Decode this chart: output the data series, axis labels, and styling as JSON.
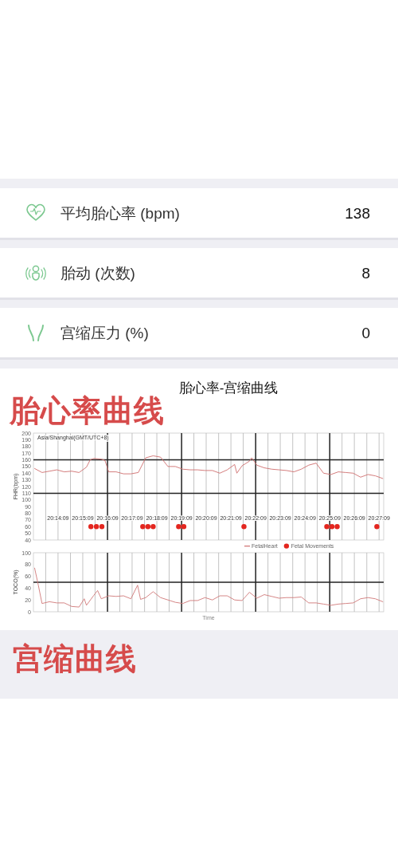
{
  "chart_data": [
    {
      "type": "other",
      "categories": [
        "平均胎心率 (bpm)",
        "胎动 (次数)",
        "宫缩压力 (%)"
      ],
      "values": [
        138,
        8,
        0
      ],
      "data_labels": true
    },
    {
      "type": "line",
      "title": "胎心率-宫缩曲线",
      "ylabel": "FHR(bpm)",
      "annotations": [
        "胎心率曲线",
        "Asia/Shanghai(GMT/UTC+8)"
      ],
      "series": [
        {
          "name": "FetalHeart",
          "type": "line",
          "color": "#cf6e6e",
          "x": [
            20.22,
            20.225,
            20.23,
            20.235,
            20.24,
            20.245,
            20.25,
            20.255,
            20.2575,
            20.26,
            20.265,
            20.2675,
            20.27,
            20.275,
            20.28,
            20.285,
            20.29,
            20.295,
            20.3,
            20.305,
            20.31,
            20.315,
            20.32,
            20.325,
            20.33,
            20.335,
            20.34,
            20.345,
            20.35,
            20.355,
            20.3565,
            20.36,
            20.365,
            20.3665,
            20.37,
            20.375,
            20.38,
            20.385,
            20.39,
            20.395,
            20.4,
            20.405,
            20.41,
            20.415,
            20.42,
            20.425,
            20.43,
            20.435,
            20.44,
            20.445,
            20.45,
            20.455
          ],
          "values": [
            147,
            141,
            143,
            145,
            142,
            143,
            141,
            149,
            160,
            162,
            161,
            159,
            142,
            142,
            139,
            139,
            141,
            163,
            166,
            164,
            150,
            150,
            146,
            145,
            145,
            144,
            144,
            140,
            145,
            153,
            140,
            151,
            158,
            163,
            152,
            148,
            146,
            145,
            144,
            142,
            146,
            152,
            155,
            140,
            138,
            142,
            141,
            140,
            134,
            138,
            136,
            132
          ]
        },
        {
          "name": "Fetal Movements",
          "type": "scatter",
          "marker": "circle",
          "color": "#e3261f",
          "x": [
            20.258,
            20.2617,
            20.2654,
            20.293,
            20.2965,
            20.3,
            20.3172,
            20.3207,
            20.3613,
            20.4172,
            20.4207,
            20.4242,
            20.451
          ],
          "values": [
            60,
            60,
            60,
            60,
            60,
            60,
            60,
            60,
            60,
            60,
            60,
            60,
            60
          ]
        }
      ],
      "xlim": [
        20.2192,
        20.4556
      ],
      "xticks": [
        {
          "value": 20.2275,
          "label": null
        },
        {
          "value": 20.2358,
          "label": "20:14:09"
        },
        {
          "value": 20.2442,
          "label": null
        },
        {
          "value": 20.2525,
          "label": "20:15:09"
        },
        {
          "value": 20.2608,
          "label": null
        },
        {
          "value": 20.2775,
          "label": null
        },
        {
          "value": 20.2858,
          "label": "20:17:09"
        },
        {
          "value": 20.2942,
          "label": null
        },
        {
          "value": 20.3025,
          "label": "20:18:09"
        },
        {
          "value": 20.3108,
          "label": null
        },
        {
          "value": 20.3275,
          "label": null
        },
        {
          "value": 20.3358,
          "label": "20:20:09"
        },
        {
          "value": 20.3442,
          "label": null
        },
        {
          "value": 20.3525,
          "label": "20:21:09"
        },
        {
          "value": 20.3608,
          "label": null
        },
        {
          "value": 20.3775,
          "label": null
        },
        {
          "value": 20.3858,
          "label": "20:23:09"
        },
        {
          "value": 20.3942,
          "label": null
        },
        {
          "value": 20.4025,
          "label": "20:24:09"
        },
        {
          "value": 20.4108,
          "label": null
        },
        {
          "value": 20.4275,
          "label": null
        },
        {
          "value": 20.4358,
          "label": "20:26:09"
        },
        {
          "value": 20.4442,
          "label": null
        },
        {
          "value": 20.4525,
          "label": "20:27:09"
        }
      ],
      "ylim": [
        40,
        200
      ],
      "yticks": [
        40,
        50,
        60,
        70,
        80,
        90,
        100,
        110,
        120,
        130,
        140,
        150,
        160,
        170,
        180,
        190,
        200
      ],
      "ref_lines": [
        {
          "axis": "y",
          "value": 160,
          "color": "#222222"
        },
        {
          "axis": "y",
          "value": 110,
          "color": "#222222"
        },
        {
          "axis": "x",
          "value": 20.2692,
          "label": "20:16:09",
          "color": "#222222"
        },
        {
          "axis": "x",
          "value": 20.3192,
          "label": "20:19:09",
          "color": "#222222"
        },
        {
          "axis": "x",
          "value": 20.3692,
          "label": "20:22:09",
          "color": "#222222"
        },
        {
          "axis": "x",
          "value": 20.4192,
          "label": "20:25:09",
          "color": "#222222"
        }
      ],
      "grid": "x",
      "legend": "bottom"
    },
    {
      "type": "line",
      "ylabel": "TOCO(%)",
      "xlabel": "Time",
      "annotations": [
        "宫缩曲线"
      ],
      "series": [
        {
          "type": "line",
          "color": "#d07878",
          "x": [
            20.22,
            20.2225,
            20.225,
            20.23,
            20.235,
            20.24,
            20.245,
            20.25,
            20.2535,
            20.255,
            20.26,
            20.2625,
            20.265,
            20.27,
            20.275,
            20.28,
            20.285,
            20.2895,
            20.2915,
            20.295,
            20.3,
            20.305,
            20.31,
            20.315,
            20.32,
            20.325,
            20.33,
            20.335,
            20.34,
            20.345,
            20.35,
            20.355,
            20.36,
            20.365,
            20.37,
            20.375,
            20.38,
            20.385,
            20.39,
            20.395,
            20.4,
            20.405,
            20.41,
            20.415,
            20.42,
            20.425,
            20.43,
            20.435,
            20.44,
            20.445,
            20.45,
            20.455
          ],
          "values": [
            74,
            45,
            14,
            17,
            15,
            15,
            9,
            8,
            22,
            11,
            28,
            36,
            22,
            27,
            26,
            27,
            22,
            45,
            21,
            24,
            34,
            24,
            20,
            16,
            14,
            19,
            19,
            24,
            20,
            27,
            27,
            20,
            19,
            33,
            23,
            29,
            26,
            23,
            24,
            24,
            25,
            15,
            15,
            13,
            11,
            13,
            14,
            15,
            22,
            24,
            22,
            17
          ]
        }
      ],
      "xlim": [
        20.2192,
        20.4556
      ],
      "xticks": [
        {
          "value": 20.2275,
          "label": null
        },
        {
          "value": 20.2358,
          "label": null
        },
        {
          "value": 20.2442,
          "label": null
        },
        {
          "value": 20.2525,
          "label": null
        },
        {
          "value": 20.2608,
          "label": null
        },
        {
          "value": 20.2775,
          "label": null
        },
        {
          "value": 20.2858,
          "label": null
        },
        {
          "value": 20.2942,
          "label": null
        },
        {
          "value": 20.3025,
          "label": null
        },
        {
          "value": 20.3108,
          "label": null
        },
        {
          "value": 20.3275,
          "label": null
        },
        {
          "value": 20.3358,
          "label": null
        },
        {
          "value": 20.3442,
          "label": null
        },
        {
          "value": 20.3525,
          "label": null
        },
        {
          "value": 20.3608,
          "label": null
        },
        {
          "value": 20.3775,
          "label": null
        },
        {
          "value": 20.3858,
          "label": null
        },
        {
          "value": 20.3942,
          "label": null
        },
        {
          "value": 20.4025,
          "label": null
        },
        {
          "value": 20.4108,
          "label": null
        },
        {
          "value": 20.4275,
          "label": null
        },
        {
          "value": 20.4358,
          "label": null
        },
        {
          "value": 20.4442,
          "label": null
        },
        {
          "value": 20.4525,
          "label": null
        }
      ],
      "ylim": [
        0,
        100
      ],
      "yticks": [
        0,
        20,
        40,
        60,
        80,
        100
      ],
      "ref_lines": [
        {
          "axis": "y",
          "value": 50,
          "color": "#222222"
        },
        {
          "axis": "x",
          "value": 20.2692,
          "color": "#222222"
        },
        {
          "axis": "x",
          "value": 20.3192,
          "color": "#222222"
        },
        {
          "axis": "x",
          "value": 20.3692,
          "color": "#222222"
        },
        {
          "axis": "x",
          "value": 20.4192,
          "color": "#222222"
        }
      ],
      "grid": "x",
      "tick_labels": "y"
    }
  ]
}
